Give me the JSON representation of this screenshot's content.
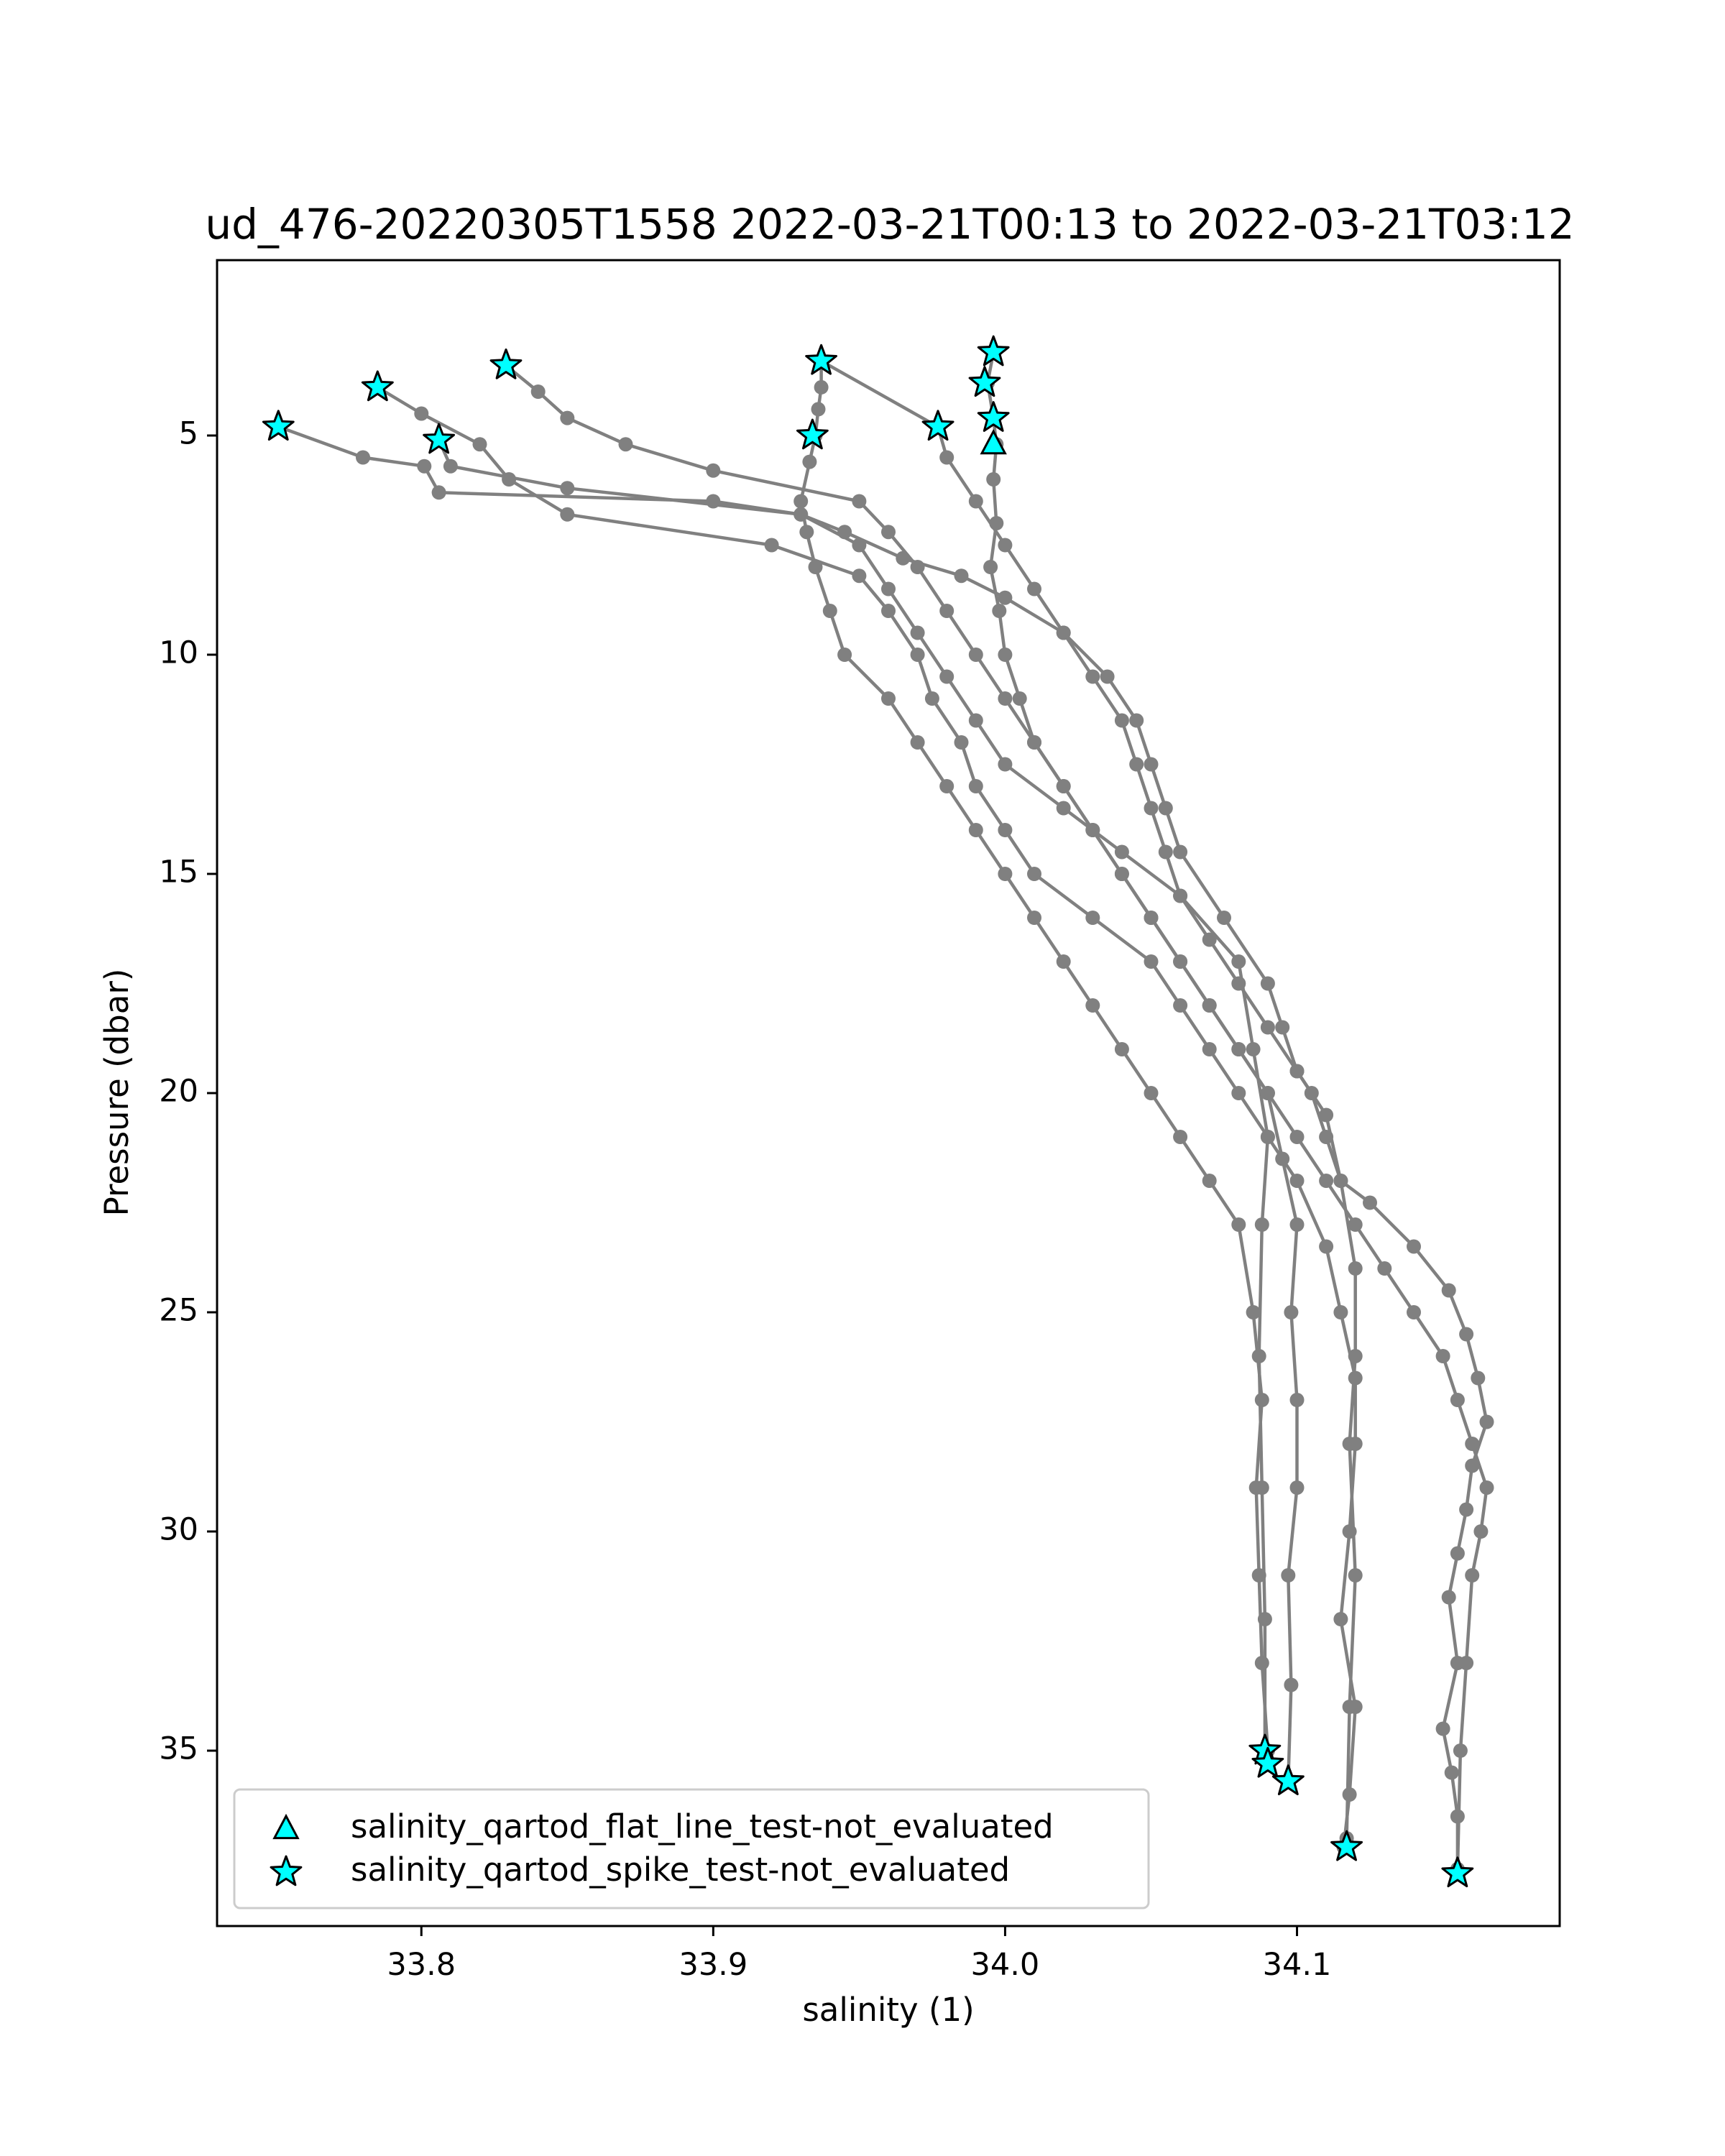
{
  "chart_data": {
    "type": "line",
    "title": "ud_476-20220305T1558 2022-03-21T00:13 to 2022-03-21T03:12",
    "xlabel": "salinity (1)",
    "ylabel": "Pressure (dbar)",
    "xlim": [
      33.73,
      34.19
    ],
    "ylim": [
      39.0,
      1.0
    ],
    "y_inverted": true,
    "grid": false,
    "xticks": [
      "33.8",
      "33.9",
      "34.0",
      "34.1"
    ],
    "xtick_values": [
      33.8,
      33.9,
      34.0,
      34.1
    ],
    "yticks": [
      "5",
      "10",
      "15",
      "20",
      "25",
      "30",
      "35"
    ],
    "ytick_values": [
      5,
      10,
      15,
      20,
      25,
      30,
      35
    ],
    "line_color": "#808080",
    "marker_color": "#00ffff",
    "legend_position": "lower-left",
    "legend": [
      {
        "label": "salinity_qartod_flat_line_test-not_evaluated",
        "marker": "triangle"
      },
      {
        "label": "salinity_qartod_spike_test-not_evaluated",
        "marker": "star"
      }
    ],
    "series": [
      {
        "x": [
          33.751,
          33.78,
          33.801,
          33.806,
          33.9,
          33.93,
          33.945,
          33.965,
          33.985,
          34.0,
          34.02,
          34.035,
          34.045,
          34.05,
          34.055,
          34.06,
          34.075,
          34.09,
          34.095,
          34.1,
          34.105,
          34.11,
          34.115,
          34.125,
          34.14,
          34.152,
          34.158,
          34.162,
          34.165,
          34.16,
          34.158,
          34.155,
          34.152,
          34.155,
          34.15,
          34.153,
          34.155,
          34.155
        ],
        "y": [
          4.8,
          5.5,
          5.7,
          6.3,
          6.5,
          6.8,
          7.2,
          7.8,
          8.2,
          8.7,
          9.5,
          10.5,
          11.5,
          12.5,
          13.5,
          14.5,
          16.0,
          17.5,
          18.5,
          19.5,
          20.0,
          21.0,
          22.0,
          22.5,
          23.5,
          24.5,
          25.5,
          26.5,
          27.5,
          28.5,
          29.5,
          30.5,
          31.5,
          33.0,
          34.5,
          35.5,
          36.5,
          37.8
        ]
      },
      {
        "x": [
          33.785,
          33.8,
          33.82,
          33.83,
          33.85,
          33.92,
          33.95,
          33.96,
          33.97,
          33.975,
          33.985,
          33.99,
          34.0,
          34.01,
          34.03,
          34.05,
          34.06,
          34.07,
          34.08,
          34.09,
          34.1,
          34.11,
          34.115,
          34.12,
          34.12,
          34.118,
          34.115,
          34.12,
          34.118,
          34.116
        ],
        "y": [
          3.9,
          4.5,
          5.2,
          6.0,
          6.8,
          7.5,
          8.2,
          9.0,
          10.0,
          11.0,
          12.0,
          13.0,
          14.0,
          15.0,
          16.0,
          17.0,
          18.0,
          19.0,
          20.0,
          21.0,
          22.0,
          23.5,
          25.0,
          26.5,
          28.0,
          30.0,
          32.0,
          34.0,
          36.0,
          37.2
        ]
      },
      {
        "x": [
          33.829,
          33.84,
          33.85,
          33.87,
          33.9,
          33.95,
          33.96,
          33.97,
          33.98,
          33.99,
          34.0,
          34.01,
          34.02,
          34.03,
          34.04,
          34.05,
          34.06,
          34.07,
          34.08,
          34.09,
          34.095,
          34.1,
          34.098,
          34.1,
          34.1,
          34.097,
          34.098,
          34.097
        ],
        "y": [
          3.4,
          4.0,
          4.6,
          5.2,
          5.8,
          6.5,
          7.2,
          8.0,
          9.0,
          10.0,
          11.0,
          12.0,
          13.0,
          14.0,
          15.0,
          16.0,
          17.0,
          18.0,
          19.0,
          20.0,
          21.5,
          23.0,
          25.0,
          27.0,
          29.0,
          31.0,
          33.5,
          35.7
        ]
      },
      {
        "x": [
          33.806,
          33.81,
          33.85,
          33.93,
          33.95,
          33.96,
          33.97,
          33.98,
          33.99,
          34.0,
          34.02,
          34.04,
          34.06,
          34.08,
          34.085,
          34.09,
          34.088,
          34.087,
          34.088,
          34.089,
          34.089
        ],
        "y": [
          5.1,
          5.7,
          6.2,
          6.8,
          7.5,
          8.5,
          9.5,
          10.5,
          11.5,
          12.5,
          13.5,
          14.5,
          15.5,
          17.0,
          19.0,
          21.0,
          23.0,
          26.0,
          29.0,
          32.0,
          35.2
        ]
      },
      {
        "x": [
          33.937,
          33.937,
          33.936,
          33.935,
          33.933,
          33.93,
          33.932,
          33.935,
          33.94,
          33.945,
          33.96,
          33.97,
          33.98,
          33.99,
          34.0,
          34.01,
          34.02,
          34.03,
          34.04,
          34.05,
          34.06,
          34.07,
          34.08,
          34.085,
          34.088,
          34.086,
          34.087,
          34.088,
          34.09
        ],
        "y": [
          3.3,
          3.9,
          4.4,
          5.0,
          5.6,
          6.5,
          7.2,
          8.0,
          9.0,
          10.0,
          11.0,
          12.0,
          13.0,
          14.0,
          15.0,
          16.0,
          17.0,
          18.0,
          19.0,
          20.0,
          21.0,
          22.0,
          23.0,
          25.0,
          27.0,
          29.0,
          31.0,
          33.0,
          35.0
        ]
      },
      {
        "x": [
          33.937,
          33.977,
          33.98,
          33.99,
          34.0,
          34.01,
          34.02,
          34.03,
          34.04,
          34.045,
          34.05,
          34.055,
          34.06,
          34.07,
          34.08,
          34.09,
          34.1,
          34.11,
          34.115,
          34.12,
          34.12,
          34.118,
          34.12,
          34.118,
          34.117
        ],
        "y": [
          3.3,
          4.8,
          5.5,
          6.5,
          7.5,
          8.5,
          9.5,
          10.5,
          11.5,
          12.5,
          13.5,
          14.5,
          15.5,
          16.5,
          17.5,
          18.5,
          19.5,
          20.5,
          22.0,
          24.0,
          26.0,
          28.0,
          31.0,
          34.0,
          37.0
        ]
      },
      {
        "x": [
          33.996,
          33.994,
          33.996,
          33.997,
          33.996,
          33.997,
          33.995,
          33.998,
          34.0,
          34.005,
          34.01,
          34.02,
          34.03,
          34.04,
          34.05,
          34.06,
          34.07,
          34.08,
          34.09,
          34.1,
          34.11,
          34.12,
          34.13,
          34.14,
          34.15,
          34.155,
          34.16,
          34.165,
          34.163,
          34.16,
          34.158,
          34.156,
          34.155
        ],
        "y": [
          3.1,
          3.8,
          4.6,
          5.2,
          6.0,
          7.0,
          8.0,
          9.0,
          10.0,
          11.0,
          12.0,
          13.0,
          14.0,
          15.0,
          16.0,
          17.0,
          18.0,
          19.0,
          20.0,
          21.0,
          22.0,
          23.0,
          24.0,
          25.0,
          26.0,
          27.0,
          28.0,
          29.0,
          30.0,
          31.0,
          33.0,
          35.0,
          37.7
        ]
      }
    ],
    "flat_line_markers": {
      "x": [
        33.996
      ],
      "y": [
        5.2
      ]
    },
    "spike_markers": {
      "x": [
        33.751,
        33.785,
        33.806,
        33.829,
        33.937,
        33.934,
        33.977,
        33.996,
        33.993,
        33.996,
        34.089,
        34.09,
        34.097,
        34.117,
        34.155
      ],
      "y": [
        4.8,
        3.9,
        5.1,
        3.4,
        3.3,
        5.0,
        4.8,
        3.1,
        3.8,
        4.6,
        35.0,
        35.3,
        35.7,
        37.2,
        37.8
      ]
    }
  }
}
